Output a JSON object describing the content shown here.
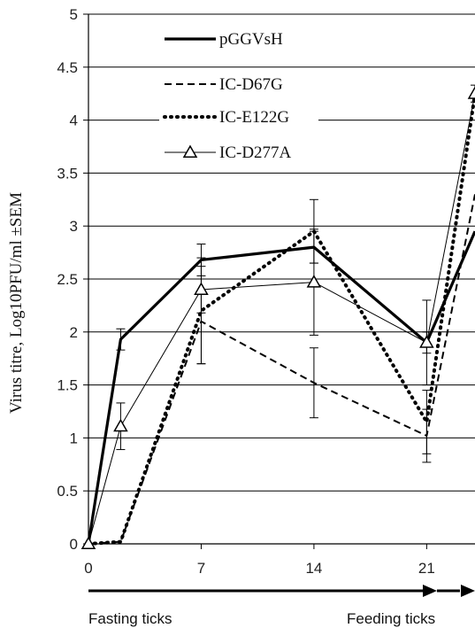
{
  "chart_data": {
    "type": "line",
    "title": "",
    "xlabel": "",
    "ylabel": "Virus titre, Log10PFU/ml ±SEM",
    "xticks": [
      "0",
      "7",
      "14",
      "21"
    ],
    "yticks": [
      "0",
      "0.5",
      "1",
      "1.5",
      "2",
      "2.5",
      "3",
      "3.5",
      "4",
      "4.5",
      "5"
    ],
    "xlim": [
      0,
      24
    ],
    "ylim": [
      0,
      5
    ],
    "grid": "horizontal",
    "legend_position": "top-left",
    "series": [
      {
        "name": "pGGVsH",
        "style": "solid-thick",
        "color": "#000000",
        "x": [
          0,
          2,
          7,
          14,
          21,
          24
        ],
        "y": [
          0,
          1.93,
          2.68,
          2.8,
          1.9,
          2.95
        ],
        "err": [
          0,
          0.1,
          0.15,
          0.15,
          0.1,
          0
        ]
      },
      {
        "name": "IC-D67G",
        "style": "dashed",
        "color": "#000000",
        "x": [
          0,
          2,
          7,
          14,
          21,
          24
        ],
        "y": [
          0,
          0.02,
          2.1,
          1.52,
          1.02,
          3.3
        ],
        "err": [
          0,
          0,
          0.4,
          0.33,
          0.25,
          0
        ]
      },
      {
        "name": "IC-E122G",
        "style": "dotted",
        "color": "#000000",
        "x": [
          0,
          2,
          7,
          14,
          21,
          24
        ],
        "y": [
          0,
          0.02,
          2.2,
          2.95,
          1.15,
          4.25
        ],
        "err": [
          0,
          0,
          0.5,
          0.3,
          0.3,
          0
        ]
      },
      {
        "name": "IC-D277A",
        "style": "thin-triangle-markers",
        "color": "#000000",
        "x": [
          0,
          2,
          7,
          14,
          21,
          24
        ],
        "y": [
          0,
          1.11,
          2.4,
          2.47,
          1.9,
          4.25
        ],
        "err": [
          0,
          0.22,
          0.22,
          0.5,
          0.4,
          0.08
        ]
      }
    ],
    "bottom_labels": {
      "left": "Fasting ticks",
      "right": "Feeding ticks"
    }
  }
}
